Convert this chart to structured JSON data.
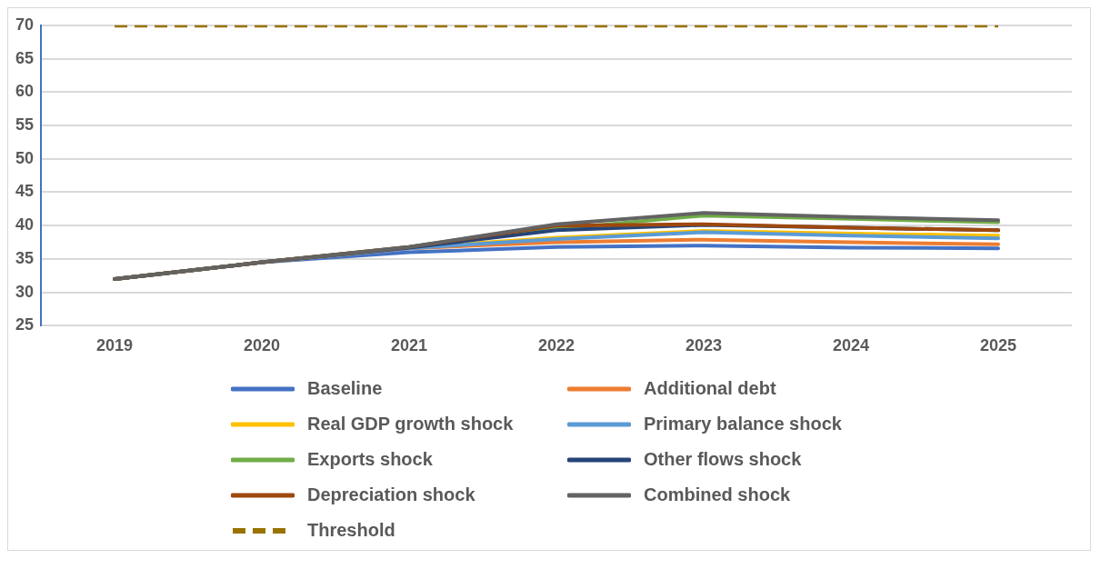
{
  "chart_data": {
    "type": "line",
    "categories": [
      "2019",
      "2020",
      "2021",
      "2022",
      "2023",
      "2024",
      "2025"
    ],
    "ylim": [
      25,
      70
    ],
    "yticks": [
      25,
      30,
      35,
      40,
      45,
      50,
      55,
      60,
      65,
      70
    ],
    "grid": "y",
    "legend": "bottom",
    "marker": "none",
    "series": [
      {
        "name": "Baseline",
        "color": "#4472c4",
        "values": [
          32,
          34.5,
          36,
          36.8,
          37,
          36.7,
          36.6
        ]
      },
      {
        "name": "Additional debt",
        "color": "#ed7d31",
        "values": [
          32,
          34.5,
          36.6,
          37.5,
          37.9,
          37.5,
          37.2
        ]
      },
      {
        "name": "Real GDP growth shock",
        "color": "#ffc000",
        "values": [
          32,
          34.5,
          36.7,
          38.2,
          39.2,
          38.8,
          38.5
        ]
      },
      {
        "name": "Primary balance shock",
        "color": "#5b9bd5",
        "values": [
          32,
          34.5,
          36.6,
          38,
          39,
          38.5,
          38.1
        ]
      },
      {
        "name": "Exports shock",
        "color": "#70ad47",
        "values": [
          32,
          34.5,
          36.8,
          39.5,
          41.5,
          41,
          40.5
        ]
      },
      {
        "name": "Other flows shock",
        "color": "#264478",
        "values": [
          32,
          34.5,
          36.7,
          39.3,
          40.1,
          39.7,
          39.3
        ]
      },
      {
        "name": "Depreciation shock",
        "color": "#9e480e",
        "values": [
          32,
          34.5,
          36.8,
          40,
          40.2,
          39.7,
          39.3
        ]
      },
      {
        "name": "Combined shock",
        "color": "#636363",
        "values": [
          32,
          34.5,
          36.8,
          40.2,
          41.9,
          41.3,
          40.8
        ]
      },
      {
        "name": "Threshold",
        "color": "#997300",
        "line_style": "dashed",
        "values": [
          70,
          70,
          70,
          70,
          70,
          70,
          70
        ]
      }
    ]
  }
}
